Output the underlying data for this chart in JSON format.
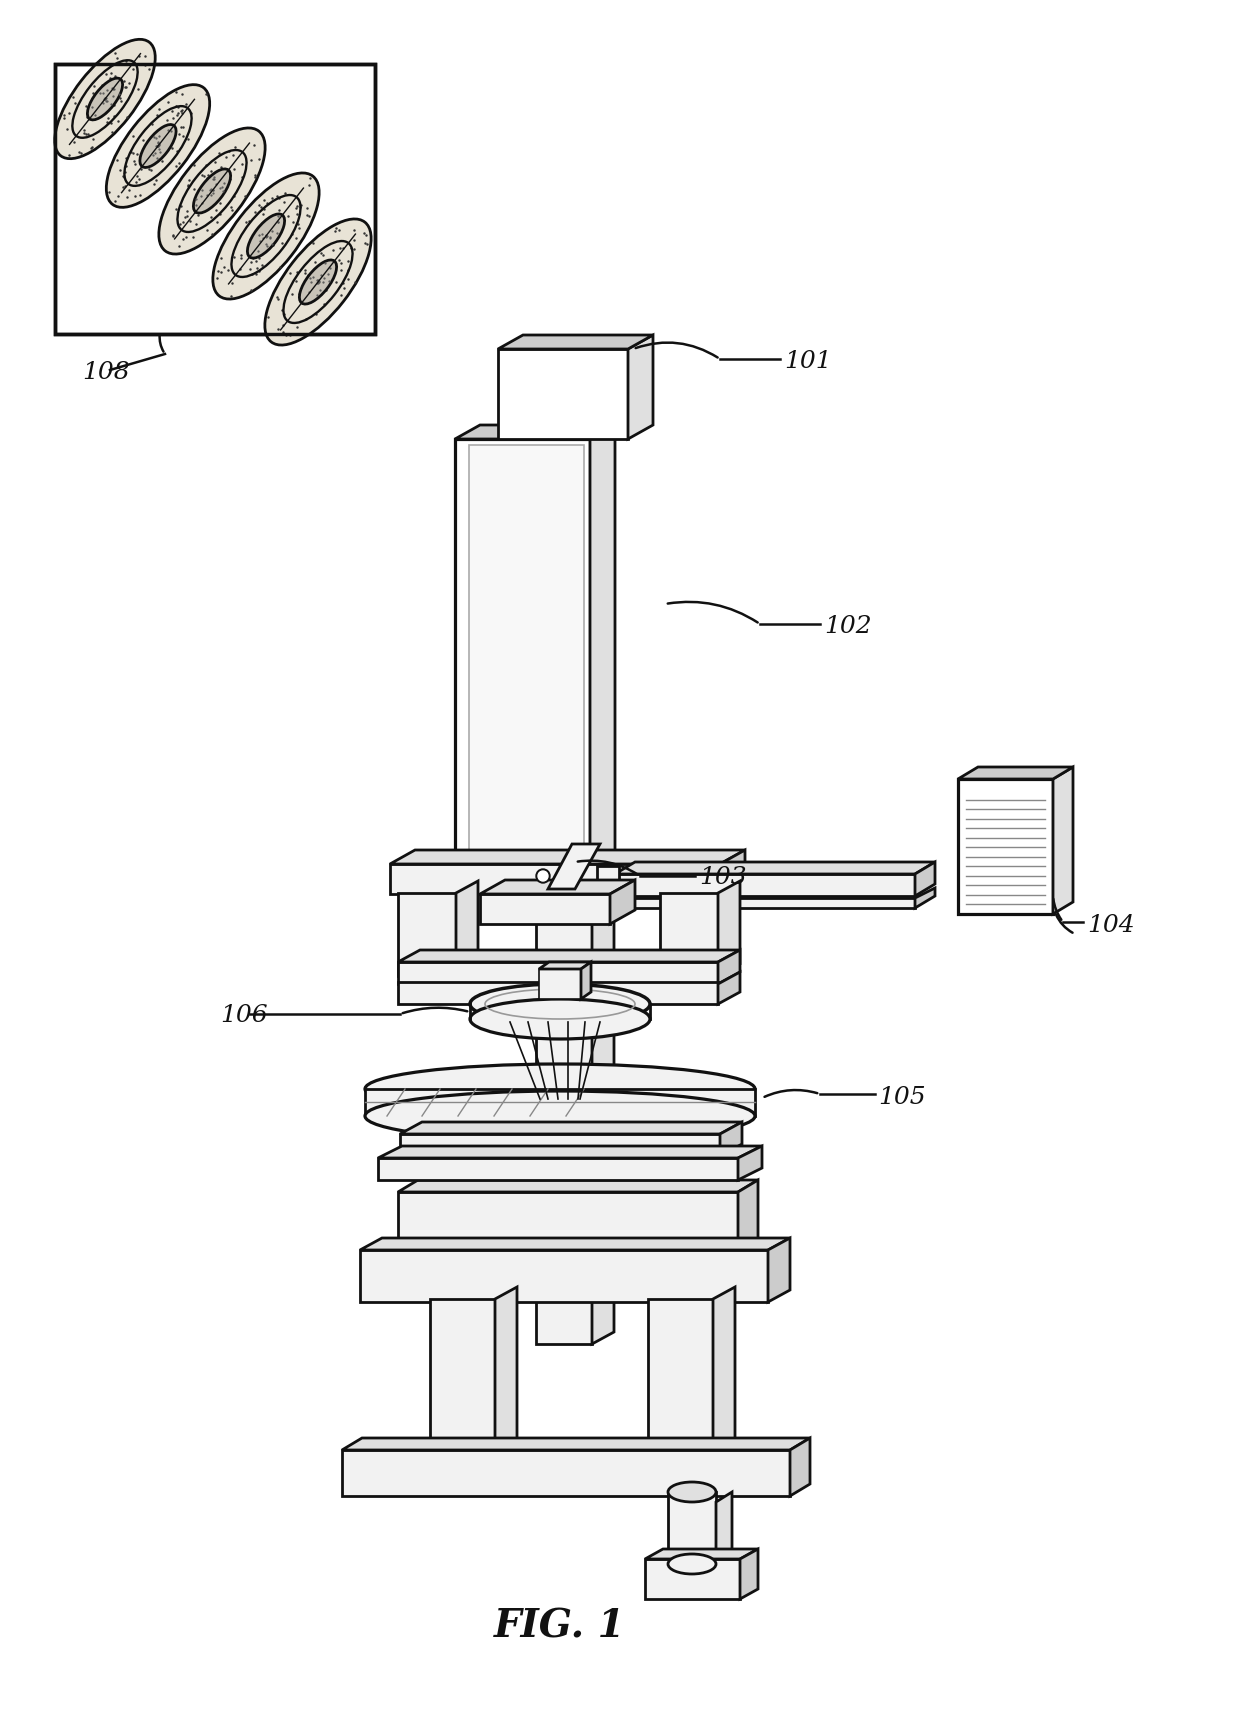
{
  "bg_color": "#ffffff",
  "lc": "#111111",
  "fw": "#ffffff",
  "fl": "#f2f2f2",
  "fm": "#e0e0e0",
  "fd": "#cccccc",
  "fig_label": "FIG. 1",
  "lw": 2.0,
  "lw_t": 1.2
}
